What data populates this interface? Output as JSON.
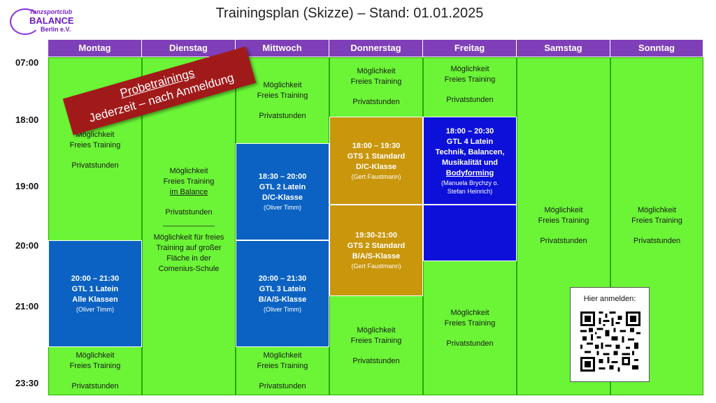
{
  "title": "Trainingsplan (Skizze) – Stand: 01.01.2025",
  "logo": {
    "line1": "Tanzsportclub",
    "line2": "BALANCE",
    "line3": "Berlin e.V.",
    "color": "#7f3fb8"
  },
  "days": [
    "Montag",
    "Dienstag",
    "Mittwoch",
    "Donnerstag",
    "Freitag",
    "Samstag",
    "Sonntag"
  ],
  "times": [
    "07:00",
    "18:00",
    "19:00",
    "20:00",
    "21:00",
    "23:30"
  ],
  "banner": {
    "line1": "Probetrainings",
    "line2": "Jederzeit – nach Anmeldung"
  },
  "free": {
    "l1": "Möglichkeit",
    "l2": "Freies Training",
    "l3": "Privatstunden"
  },
  "dienstag": {
    "l1": "Möglichkeit",
    "l2": "Freies Training",
    "l3": "im Balance",
    "l4": "Privatstunden",
    "sep": "____________",
    "l5": "Möglichkeit für freies",
    "l6": "Training auf großer",
    "l7": "Fläche in der",
    "l8": "Comenius-Schule"
  },
  "classes": {
    "gtl1": {
      "time": "20:00 – 21:30",
      "name": "GTL 1 Latein",
      "group": "Alle Klassen",
      "trainer": "(Oliver Timm)"
    },
    "gtl2": {
      "time": "18:30 – 20:00",
      "name": "GTL 2 Latein",
      "group": "D/C-Klasse",
      "trainer": "(Oliver Timm)"
    },
    "gtl3": {
      "time": "20:00 – 21:30",
      "name": "GTL 3 Latein",
      "group": "B/A/S-Klasse",
      "trainer": "(Oliver Timm)"
    },
    "gts1": {
      "time": "18:00 – 19:30",
      "name": "GTS 1 Standard",
      "group": "D/C-Klasse",
      "trainer": "(Gert Faustmann)"
    },
    "gts2": {
      "time": "19:30-21:00",
      "name": "GTS 2 Standard",
      "group": "B/A/S-Klasse",
      "trainer": "(Gert Faustmann)"
    },
    "gtl4": {
      "time": "18:00 – 20:30",
      "name": "GTL 4 Latein",
      "l3": "Technik, Balancen,",
      "l4": "Musikalität und",
      "l5": "Bodyforming",
      "trainer1": "(Manuela Brychzy o.",
      "trainer2": "Stefan Heinrich)"
    }
  },
  "qr": {
    "label": "Hier anmelden:"
  },
  "colors": {
    "green": "#6bf536",
    "purple": "#7f3fb8",
    "blue": "#0b62c2",
    "darkblue": "#0c10d8",
    "gold": "#c9960c",
    "banner": "#a11a1a"
  }
}
